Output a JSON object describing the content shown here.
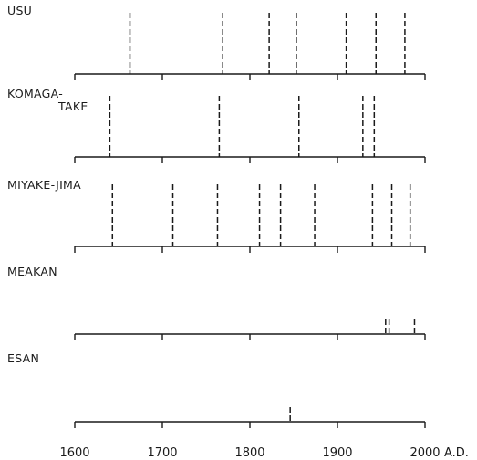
{
  "chart_data": {
    "type": "timeline",
    "x_range": [
      1600,
      2000
    ],
    "x_ticks": [
      1600,
      1700,
      1800,
      1900,
      2000
    ],
    "tick_labels": [
      "1600",
      "1700",
      "1800",
      "1900",
      "2000"
    ],
    "x_unit_label": "A.D.",
    "volcanoes": [
      {
        "name": "USU",
        "eruptions": [
          1663,
          1769,
          1822,
          1853,
          1910,
          1944,
          1977
        ]
      },
      {
        "name": "KOMAGA-",
        "name_line2": "TAKE",
        "eruptions": [
          1640,
          1765,
          1856,
          1929,
          1942
        ]
      },
      {
        "name": "MIYAKE-JIMA",
        "eruptions": [
          1643,
          1712,
          1763,
          1811,
          1835,
          1874,
          1940,
          1962,
          1983
        ]
      },
      {
        "name": "MEAKAN",
        "eruptions": [
          1955,
          1959,
          1988
        ]
      },
      {
        "name": "ESAN",
        "eruptions": [
          1846
        ]
      }
    ]
  }
}
